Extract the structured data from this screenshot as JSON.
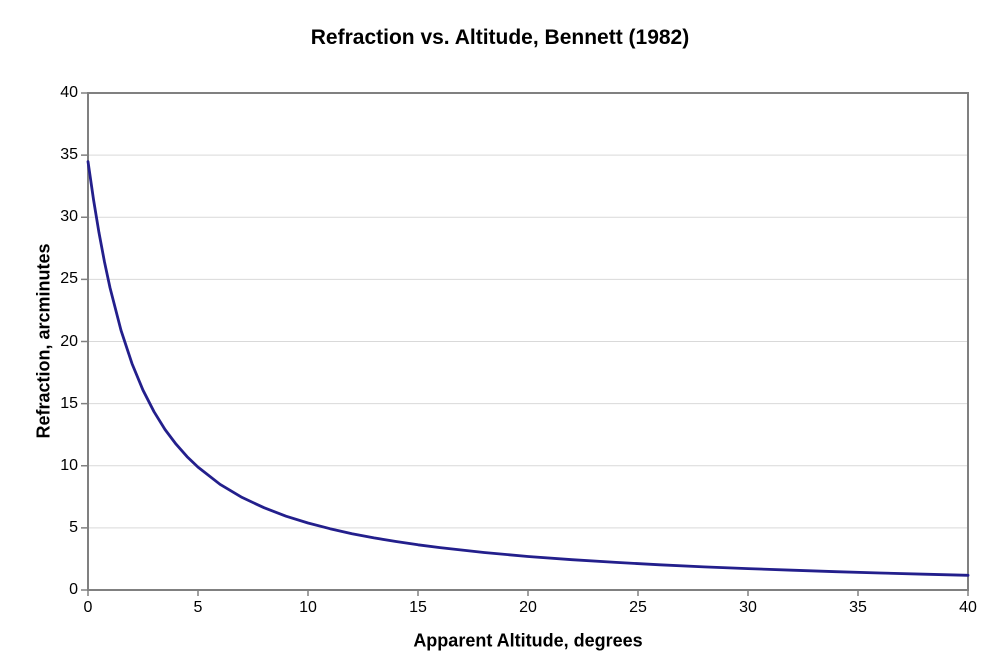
{
  "chart_data": {
    "type": "line",
    "title": "Refraction vs. Altitude, Bennett (1982)",
    "xlabel": "Apparent Altitude, degrees",
    "ylabel": "Refraction, arcminutes",
    "xlim": [
      0,
      40
    ],
    "ylim": [
      0,
      40
    ],
    "x_ticks": [
      0,
      5,
      10,
      15,
      20,
      25,
      30,
      35,
      40
    ],
    "y_ticks": [
      0,
      5,
      10,
      15,
      20,
      25,
      30,
      35,
      40
    ],
    "grid": "horizontal",
    "legend": "none",
    "series": [
      {
        "x": [
          0,
          0.25,
          0.5,
          0.75,
          1,
          1.5,
          2,
          2.5,
          3,
          3.5,
          4,
          4.5,
          5,
          6,
          7,
          8,
          9,
          10,
          11,
          12,
          13,
          14,
          15,
          16,
          18,
          20,
          22,
          24,
          26,
          28,
          30,
          32,
          34,
          36,
          38,
          40
        ],
        "y": [
          34.48,
          31.43,
          28.75,
          26.4,
          24.33,
          20.9,
          18.22,
          16.08,
          14.35,
          12.92,
          11.74,
          10.74,
          9.89,
          8.51,
          7.45,
          6.62,
          5.94,
          5.39,
          4.93,
          4.53,
          4.19,
          3.9,
          3.64,
          3.41,
          3.02,
          2.7,
          2.44,
          2.22,
          2.03,
          1.86,
          1.72,
          1.59,
          1.47,
          1.37,
          1.27,
          1.18
        ]
      }
    ]
  },
  "colors": {
    "line": "#231f8c",
    "gridline": "#d9d9d9",
    "axis": "#808080",
    "text": "#000000",
    "background": "#ffffff"
  }
}
